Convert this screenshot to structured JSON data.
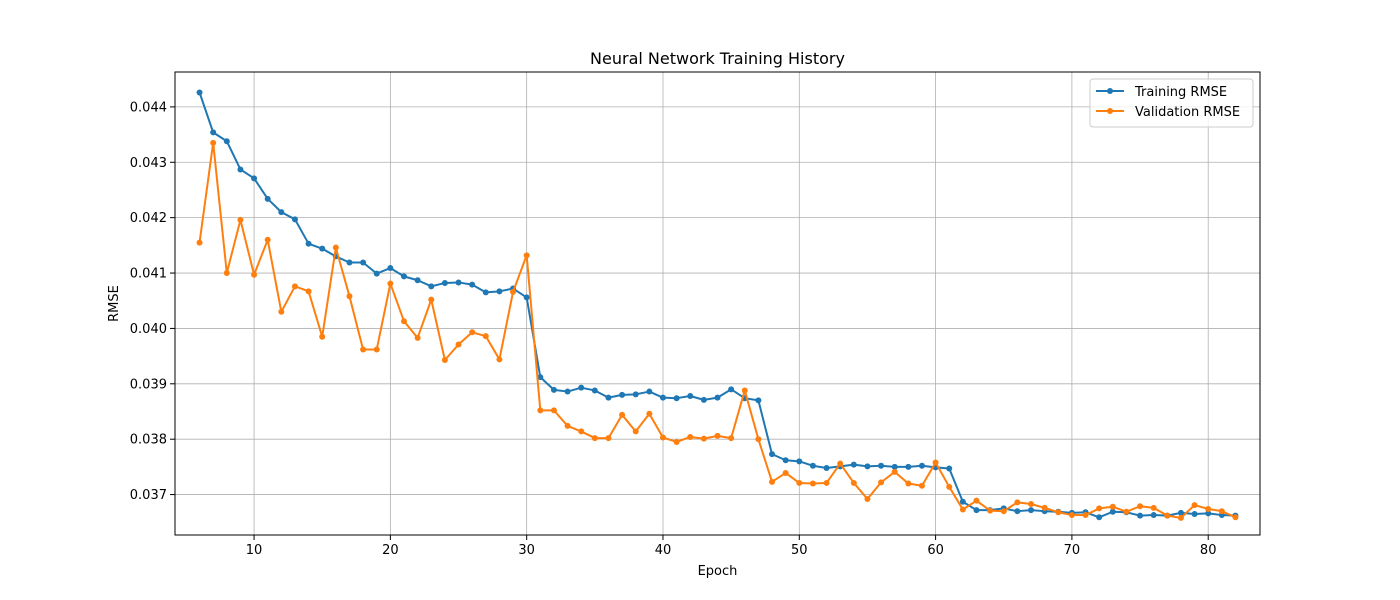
{
  "chart_data": {
    "type": "line",
    "title": "Neural Network Training History",
    "xlabel": "Epoch",
    "ylabel": "RMSE",
    "xlim": [
      4.2,
      83.8
    ],
    "ylim": [
      0.03627,
      0.04463
    ],
    "xticks": [
      10,
      20,
      30,
      40,
      50,
      60,
      70,
      80
    ],
    "yticks": [
      0.037,
      0.038,
      0.039,
      0.04,
      0.041,
      0.042,
      0.043,
      0.044
    ],
    "ytick_labels": [
      "0.037",
      "0.038",
      "0.039",
      "0.040",
      "0.041",
      "0.042",
      "0.043",
      "0.044"
    ],
    "grid": true,
    "legend_position": "top-right",
    "x": [
      6,
      7,
      8,
      9,
      10,
      11,
      12,
      13,
      14,
      15,
      16,
      17,
      18,
      19,
      20,
      21,
      22,
      23,
      24,
      25,
      26,
      27,
      28,
      29,
      30,
      31,
      32,
      33,
      34,
      35,
      36,
      37,
      38,
      39,
      40,
      41,
      42,
      43,
      44,
      45,
      46,
      47,
      48,
      49,
      50,
      51,
      52,
      53,
      54,
      55,
      56,
      57,
      58,
      59,
      60,
      61,
      62,
      63,
      64,
      65,
      66,
      67,
      68,
      69,
      70,
      71,
      72,
      73,
      74,
      75,
      76,
      77,
      78,
      79,
      80,
      81,
      82
    ],
    "series": [
      {
        "name": "Training RMSE",
        "color": "#1f77b4",
        "values": [
          0.04426,
          0.04354,
          0.04338,
          0.04287,
          0.04271,
          0.04234,
          0.0421,
          0.04197,
          0.04153,
          0.04144,
          0.0413,
          0.04119,
          0.04119,
          0.04099,
          0.04109,
          0.04094,
          0.04087,
          0.04076,
          0.04082,
          0.04083,
          0.04079,
          0.04065,
          0.04067,
          0.04072,
          0.04056,
          0.03912,
          0.03889,
          0.03886,
          0.03893,
          0.03888,
          0.03875,
          0.0388,
          0.03881,
          0.03886,
          0.03875,
          0.03874,
          0.03878,
          0.03871,
          0.03875,
          0.0389,
          0.03874,
          0.0387,
          0.03773,
          0.03762,
          0.0376,
          0.03752,
          0.03748,
          0.03751,
          0.03754,
          0.03751,
          0.03752,
          0.0375,
          0.0375,
          0.03752,
          0.03749,
          0.03747,
          0.03687,
          0.03672,
          0.03672,
          0.03675,
          0.0367,
          0.03672,
          0.0367,
          0.03669,
          0.03667,
          0.03668,
          0.03659,
          0.03669,
          0.03668,
          0.03662,
          0.03663,
          0.03662,
          0.03667,
          0.03665,
          0.03666,
          0.03663,
          0.03662
        ]
      },
      {
        "name": "Validation RMSE",
        "color": "#ff7f0e",
        "values": [
          0.04155,
          0.04335,
          0.041,
          0.04196,
          0.04097,
          0.0416,
          0.0403,
          0.04076,
          0.04067,
          0.03985,
          0.04146,
          0.04058,
          0.03962,
          0.03962,
          0.04081,
          0.04013,
          0.03983,
          0.04052,
          0.03943,
          0.03971,
          0.03993,
          0.03986,
          0.03944,
          0.04066,
          0.04132,
          0.03852,
          0.03852,
          0.03824,
          0.03814,
          0.03802,
          0.03802,
          0.03844,
          0.03814,
          0.03846,
          0.03803,
          0.03795,
          0.03804,
          0.03801,
          0.03806,
          0.03802,
          0.03888,
          0.038,
          0.03723,
          0.03739,
          0.03721,
          0.0372,
          0.03721,
          0.03756,
          0.03721,
          0.03692,
          0.03722,
          0.03741,
          0.0372,
          0.03716,
          0.03758,
          0.03714,
          0.03673,
          0.03689,
          0.03671,
          0.0367,
          0.03686,
          0.03683,
          0.03676,
          0.03668,
          0.03663,
          0.03663,
          0.03675,
          0.03678,
          0.03669,
          0.03679,
          0.03676,
          0.03662,
          0.03658,
          0.03681,
          0.03674,
          0.0367,
          0.03659
        ]
      }
    ]
  }
}
